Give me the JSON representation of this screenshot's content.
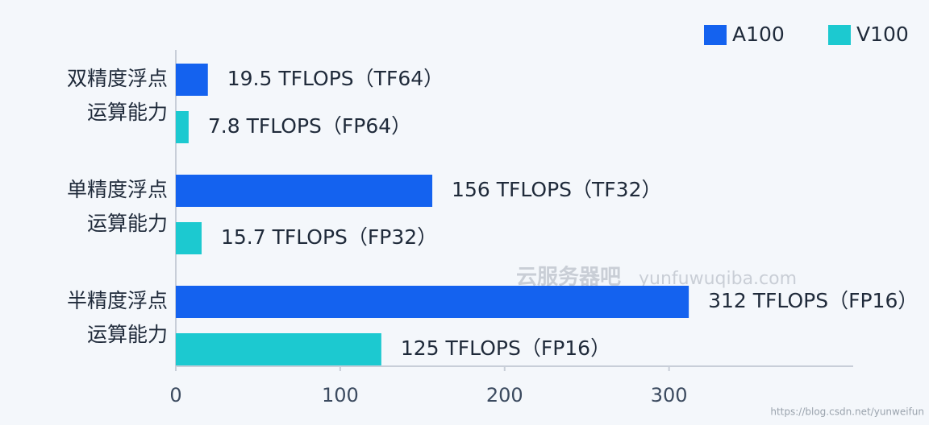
{
  "chart_data": {
    "type": "bar",
    "orientation": "horizontal",
    "categories": [
      "双精度浮点\n运算能力",
      "单精度浮点\n运算能力",
      "半精度浮点\n运算能力"
    ],
    "series": [
      {
        "name": "A100",
        "color": "#1462ef",
        "values": [
          19.5,
          156,
          312
        ],
        "value_labels": [
          "19.5 TFLOPS（TF64）",
          "156 TFLOPS（TF32）",
          "312 TFLOPS（FP16）"
        ]
      },
      {
        "name": "V100",
        "color": "#1cc9d0",
        "values": [
          7.8,
          15.7,
          125
        ],
        "value_labels": [
          "7.8 TFLOPS（FP64）",
          "15.7 TFLOPS（FP32）",
          "125 TFLOPS（FP16）"
        ]
      }
    ],
    "xlim": [
      0,
      412
    ],
    "xticks": [
      0,
      100,
      200,
      300
    ],
    "legend": "top-right",
    "watermark": "云服务器吧",
    "watermark_url": "yunfuwuqiba.com",
    "source": "https://blog.csdn.net/yunweifun"
  }
}
